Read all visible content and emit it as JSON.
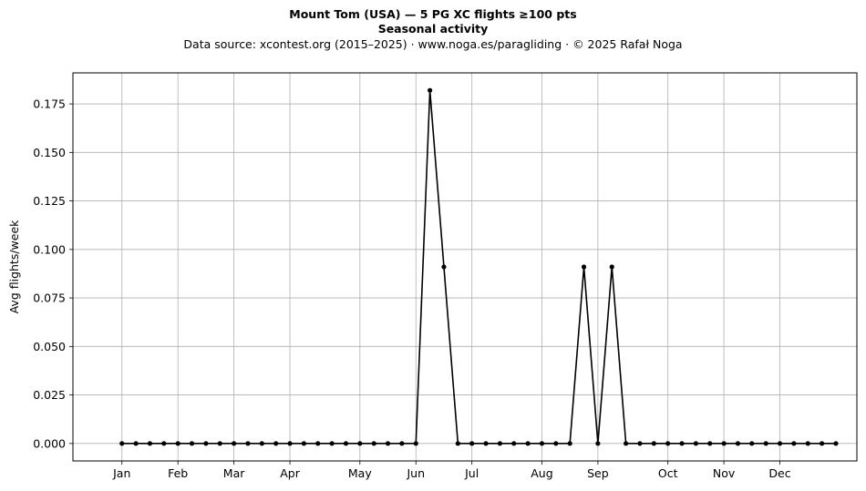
{
  "chart_data": {
    "type": "line",
    "title": "Mount Tom (USA)  —  5 PG XC flights ≥100 pts",
    "subtitle": "Seasonal activity",
    "source": "Data source: xcontest.org (2015–2025)  ·  www.noga.es/paragliding  ·  © 2025 Rafał Noga",
    "xlabel": "",
    "ylabel": "Avg flights/week",
    "x_unit": "week",
    "xlim": [
      -2.5,
      53.5
    ],
    "ylim": [
      -0.009,
      0.191
    ],
    "grid": true,
    "line_color": "#000000",
    "x_ticks": [
      {
        "label": "Jan",
        "x": 1
      },
      {
        "label": "Feb",
        "x": 5
      },
      {
        "label": "Mar",
        "x": 9
      },
      {
        "label": "Apr",
        "x": 13
      },
      {
        "label": "May",
        "x": 18
      },
      {
        "label": "Jun",
        "x": 22
      },
      {
        "label": "Jul",
        "x": 26
      },
      {
        "label": "Aug",
        "x": 31
      },
      {
        "label": "Sep",
        "x": 35
      },
      {
        "label": "Oct",
        "x": 40
      },
      {
        "label": "Nov",
        "x": 44
      },
      {
        "label": "Dec",
        "x": 48
      }
    ],
    "y_ticks": [
      "0.000",
      "0.025",
      "0.050",
      "0.075",
      "0.100",
      "0.125",
      "0.150",
      "0.175"
    ],
    "series": [
      {
        "x": [
          1,
          2,
          3,
          4,
          5,
          6,
          7,
          8,
          9,
          10,
          11,
          12,
          13,
          14,
          15,
          16,
          17,
          18,
          19,
          20,
          21,
          22,
          23,
          24,
          25,
          26,
          27,
          28,
          29,
          30,
          31,
          32,
          33,
          34,
          35,
          36,
          37,
          38,
          39,
          40,
          41,
          42,
          43,
          44,
          45,
          46,
          47,
          48,
          49,
          50,
          51,
          52
        ],
        "values": [
          0,
          0,
          0,
          0,
          0,
          0,
          0,
          0,
          0,
          0,
          0,
          0,
          0,
          0,
          0,
          0,
          0,
          0,
          0,
          0,
          0,
          0,
          0.182,
          0.091,
          0,
          0,
          0,
          0,
          0,
          0,
          0,
          0,
          0,
          0.091,
          0,
          0.091,
          0,
          0,
          0,
          0,
          0,
          0,
          0,
          0,
          0,
          0,
          0,
          0,
          0,
          0,
          0,
          0
        ]
      }
    ]
  }
}
